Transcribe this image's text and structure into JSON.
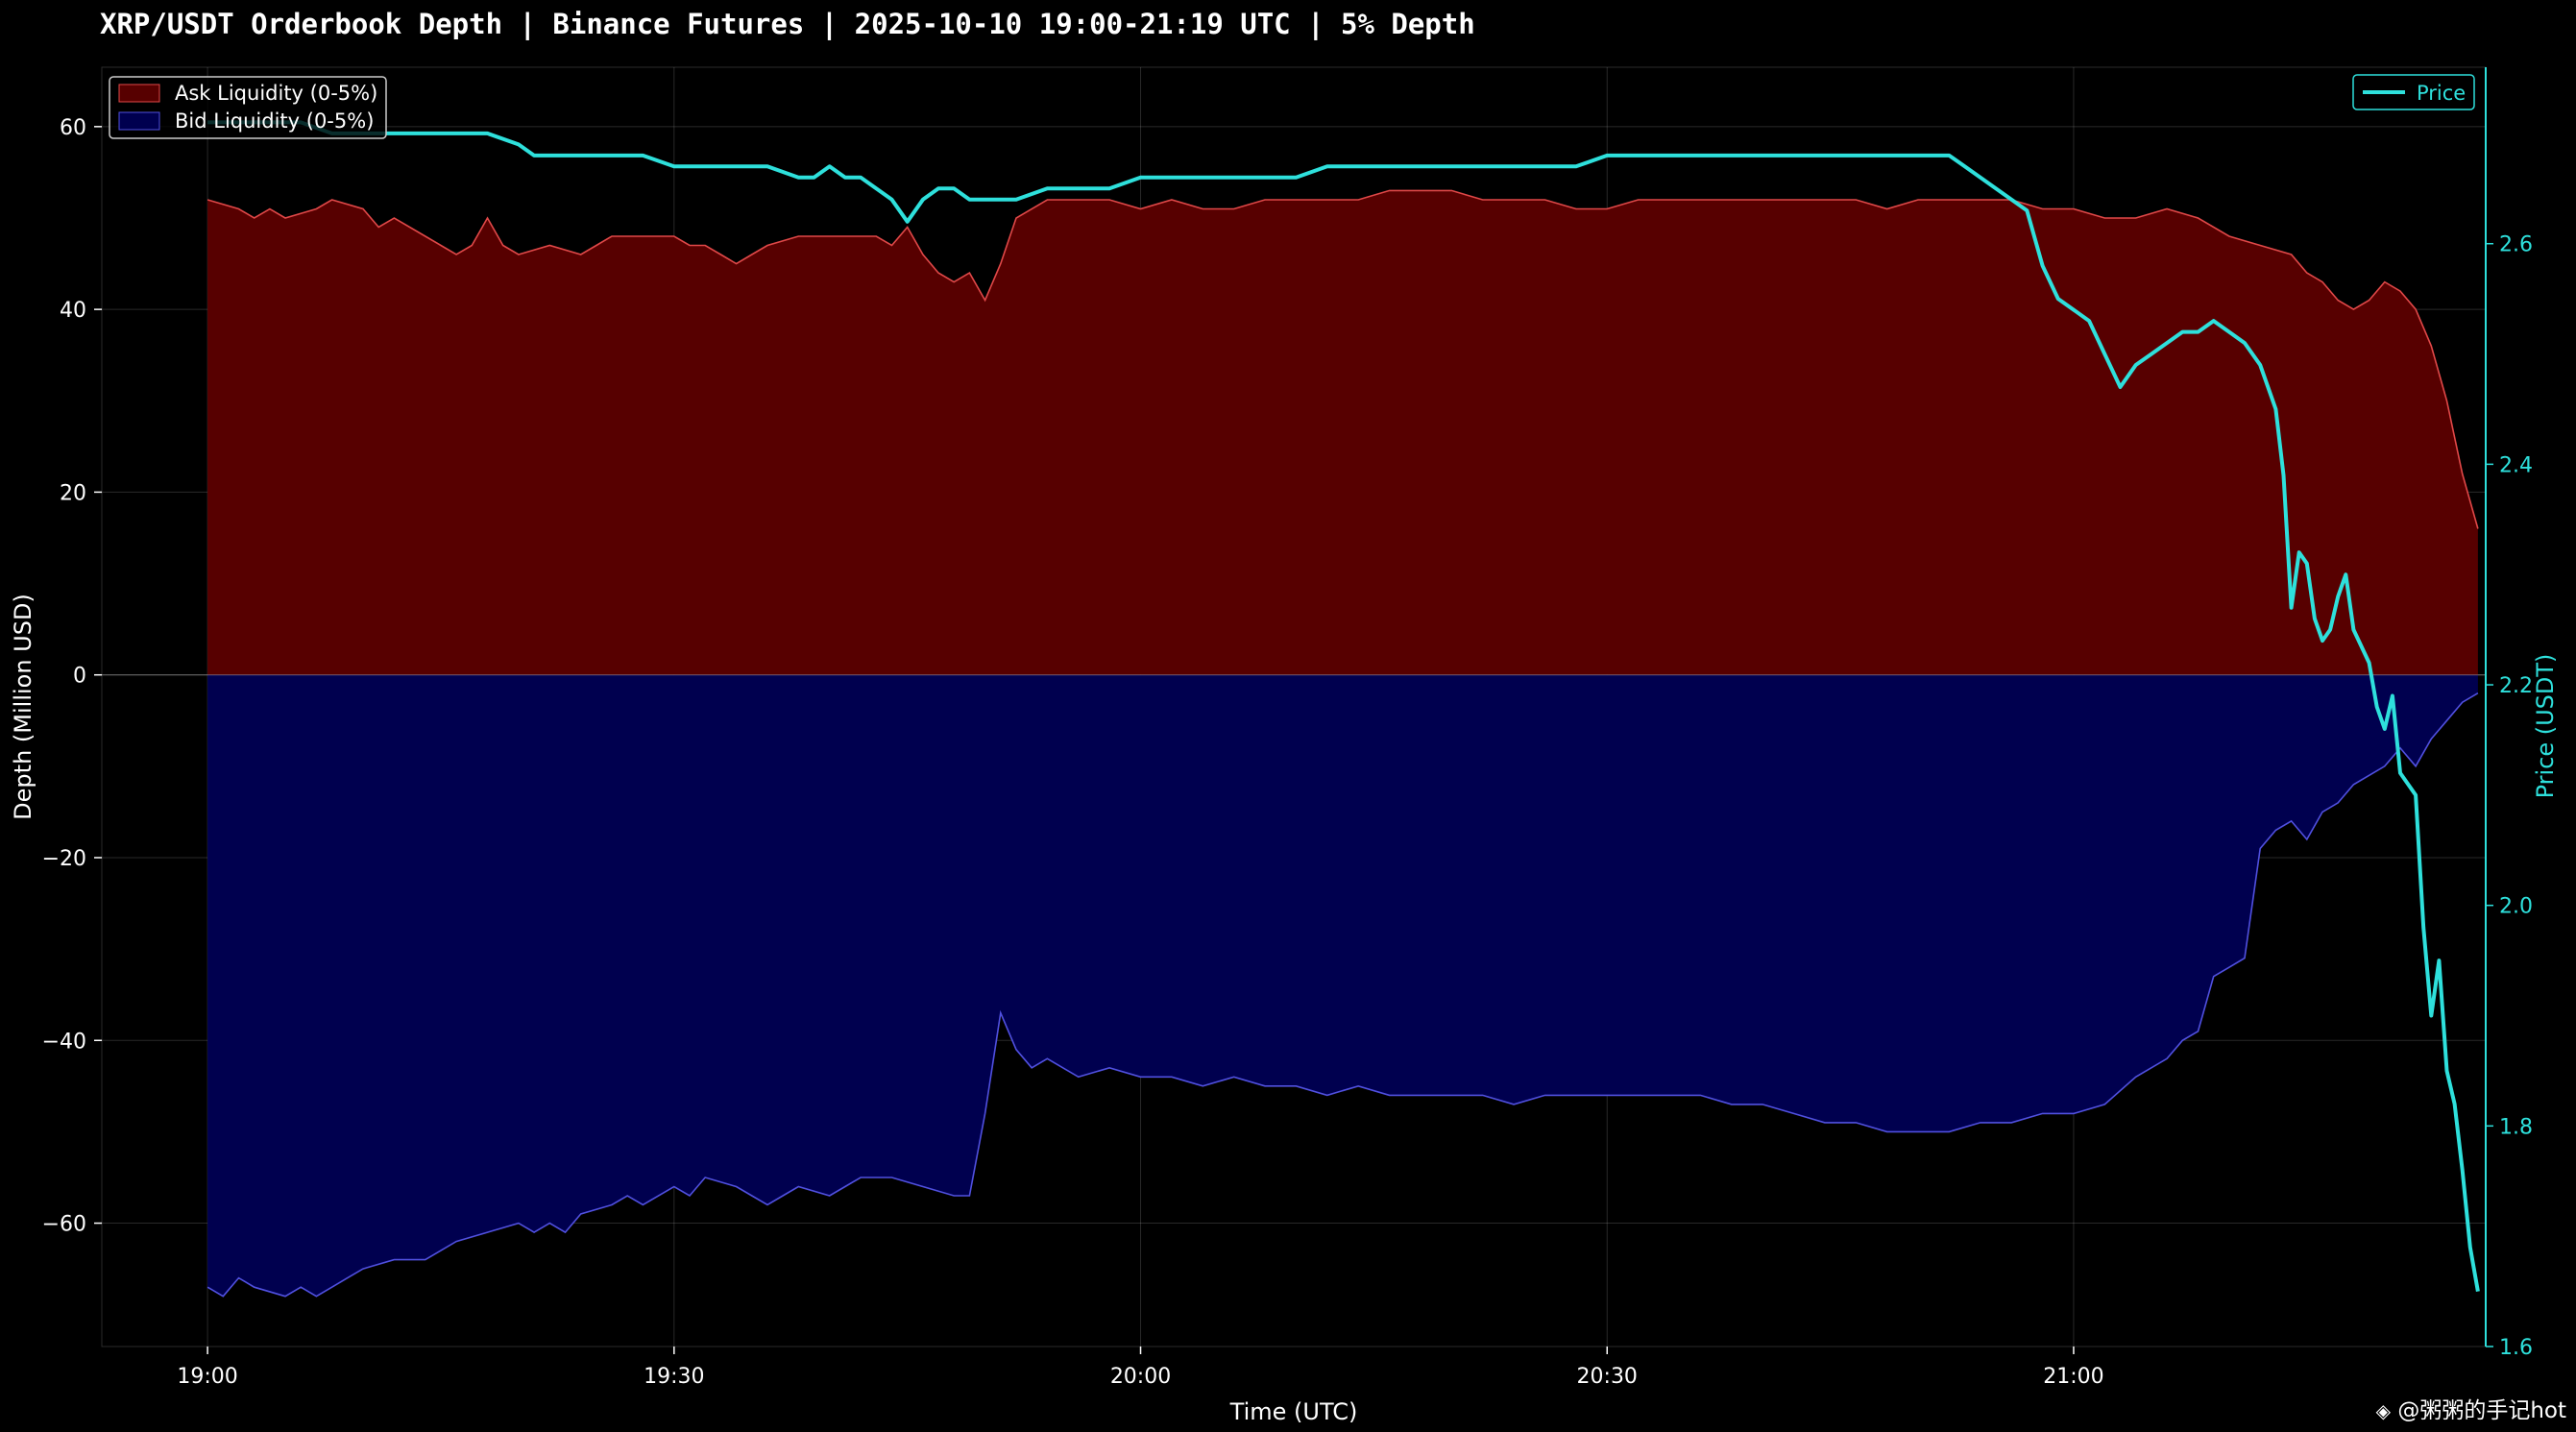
{
  "chart_data": {
    "type": "area",
    "title": "XRP/USDT Orderbook Depth | Binance Futures | 2025-10-10 19:00-21:19 UTC | 5% Depth",
    "xlabel": "Time (UTC)",
    "ylabel": "Depth (Million USD)",
    "y2label": "Price (USDT)",
    "x_ticks": [
      "19:00",
      "19:30",
      "20:00",
      "20:30",
      "21:00"
    ],
    "x_tick_minutes": [
      0,
      30,
      60,
      90,
      120
    ],
    "xlim_minutes": [
      -6.8,
      146.5
    ],
    "ylim": [
      -73.5,
      66.5
    ],
    "y_ticks": [
      -60,
      -40,
      -20,
      0,
      20,
      40,
      60
    ],
    "y2lim": [
      1.6,
      2.76
    ],
    "y2_ticks": [
      1.6,
      1.8,
      2.0,
      2.2,
      2.4,
      2.6
    ],
    "grid": true,
    "legend_left": "top-left",
    "legend_right": "top-right",
    "colors": {
      "ask": "#e04848",
      "ask_fill": "#570000",
      "bid": "#5050e0",
      "bid_fill": "#00004f",
      "price": "#2ee0dc"
    },
    "series": [
      {
        "name": "Ask Liquidity (0-5%)",
        "kind": "area",
        "points": [
          [
            0,
            52
          ],
          [
            2,
            51
          ],
          [
            3,
            50
          ],
          [
            4,
            51
          ],
          [
            5,
            50
          ],
          [
            7,
            51
          ],
          [
            8,
            52
          ],
          [
            10,
            51
          ],
          [
            11,
            49
          ],
          [
            12,
            50
          ],
          [
            14,
            48
          ],
          [
            15,
            47
          ],
          [
            16,
            46
          ],
          [
            17,
            47
          ],
          [
            18,
            50
          ],
          [
            19,
            47
          ],
          [
            20,
            46
          ],
          [
            22,
            47
          ],
          [
            24,
            46
          ],
          [
            25,
            47
          ],
          [
            26,
            48
          ],
          [
            28,
            48
          ],
          [
            30,
            48
          ],
          [
            31,
            47
          ],
          [
            32,
            47
          ],
          [
            33,
            46
          ],
          [
            34,
            45
          ],
          [
            35,
            46
          ],
          [
            36,
            47
          ],
          [
            38,
            48
          ],
          [
            40,
            48
          ],
          [
            42,
            48
          ],
          [
            43,
            48
          ],
          [
            44,
            47
          ],
          [
            45,
            49
          ],
          [
            46,
            46
          ],
          [
            47,
            44
          ],
          [
            48,
            43
          ],
          [
            49,
            44
          ],
          [
            50,
            41
          ],
          [
            51,
            45
          ],
          [
            52,
            50
          ],
          [
            54,
            52
          ],
          [
            56,
            52
          ],
          [
            58,
            52
          ],
          [
            60,
            51
          ],
          [
            62,
            52
          ],
          [
            64,
            51
          ],
          [
            66,
            51
          ],
          [
            68,
            52
          ],
          [
            70,
            52
          ],
          [
            72,
            52
          ],
          [
            74,
            52
          ],
          [
            76,
            53
          ],
          [
            78,
            53
          ],
          [
            80,
            53
          ],
          [
            82,
            52
          ],
          [
            84,
            52
          ],
          [
            86,
            52
          ],
          [
            88,
            51
          ],
          [
            90,
            51
          ],
          [
            92,
            52
          ],
          [
            94,
            52
          ],
          [
            96,
            52
          ],
          [
            98,
            52
          ],
          [
            100,
            52
          ],
          [
            102,
            52
          ],
          [
            104,
            52
          ],
          [
            106,
            52
          ],
          [
            108,
            51
          ],
          [
            110,
            52
          ],
          [
            112,
            52
          ],
          [
            114,
            52
          ],
          [
            116,
            52
          ],
          [
            118,
            51
          ],
          [
            120,
            51
          ],
          [
            122,
            50
          ],
          [
            124,
            50
          ],
          [
            126,
            51
          ],
          [
            128,
            50
          ],
          [
            130,
            48
          ],
          [
            132,
            47
          ],
          [
            134,
            46
          ],
          [
            135,
            44
          ],
          [
            136,
            43
          ],
          [
            137,
            41
          ],
          [
            138,
            40
          ],
          [
            139,
            41
          ],
          [
            140,
            43
          ],
          [
            141,
            42
          ],
          [
            142,
            40
          ],
          [
            143,
            36
          ],
          [
            144,
            30
          ],
          [
            145,
            22
          ],
          [
            146,
            16
          ]
        ]
      },
      {
        "name": "Bid Liquidity (0-5%)",
        "kind": "area",
        "points": [
          [
            0,
            -67
          ],
          [
            1,
            -68
          ],
          [
            2,
            -66
          ],
          [
            3,
            -67
          ],
          [
            5,
            -68
          ],
          [
            6,
            -67
          ],
          [
            7,
            -68
          ],
          [
            8,
            -67
          ],
          [
            9,
            -66
          ],
          [
            10,
            -65
          ],
          [
            12,
            -64
          ],
          [
            14,
            -64
          ],
          [
            15,
            -63
          ],
          [
            16,
            -62
          ],
          [
            18,
            -61
          ],
          [
            20,
            -60
          ],
          [
            21,
            -61
          ],
          [
            22,
            -60
          ],
          [
            23,
            -61
          ],
          [
            24,
            -59
          ],
          [
            26,
            -58
          ],
          [
            27,
            -57
          ],
          [
            28,
            -58
          ],
          [
            30,
            -56
          ],
          [
            31,
            -57
          ],
          [
            32,
            -55
          ],
          [
            34,
            -56
          ],
          [
            35,
            -57
          ],
          [
            36,
            -58
          ],
          [
            37,
            -57
          ],
          [
            38,
            -56
          ],
          [
            40,
            -57
          ],
          [
            41,
            -56
          ],
          [
            42,
            -55
          ],
          [
            44,
            -55
          ],
          [
            46,
            -56
          ],
          [
            48,
            -57
          ],
          [
            49,
            -57
          ],
          [
            50,
            -48
          ],
          [
            51,
            -37
          ],
          [
            52,
            -41
          ],
          [
            53,
            -43
          ],
          [
            54,
            -42
          ],
          [
            56,
            -44
          ],
          [
            58,
            -43
          ],
          [
            60,
            -44
          ],
          [
            62,
            -44
          ],
          [
            64,
            -45
          ],
          [
            66,
            -44
          ],
          [
            68,
            -45
          ],
          [
            70,
            -45
          ],
          [
            72,
            -46
          ],
          [
            74,
            -45
          ],
          [
            76,
            -46
          ],
          [
            78,
            -46
          ],
          [
            80,
            -46
          ],
          [
            82,
            -46
          ],
          [
            84,
            -47
          ],
          [
            86,
            -46
          ],
          [
            88,
            -46
          ],
          [
            90,
            -46
          ],
          [
            92,
            -46
          ],
          [
            94,
            -46
          ],
          [
            96,
            -46
          ],
          [
            98,
            -47
          ],
          [
            100,
            -47
          ],
          [
            102,
            -48
          ],
          [
            104,
            -49
          ],
          [
            106,
            -49
          ],
          [
            108,
            -50
          ],
          [
            110,
            -50
          ],
          [
            112,
            -50
          ],
          [
            114,
            -49
          ],
          [
            116,
            -49
          ],
          [
            118,
            -48
          ],
          [
            120,
            -48
          ],
          [
            122,
            -47
          ],
          [
            124,
            -44
          ],
          [
            126,
            -42
          ],
          [
            127,
            -40
          ],
          [
            128,
            -39
          ],
          [
            129,
            -33
          ],
          [
            130,
            -32
          ],
          [
            131,
            -31
          ],
          [
            132,
            -19
          ],
          [
            133,
            -17
          ],
          [
            134,
            -16
          ],
          [
            135,
            -18
          ],
          [
            136,
            -15
          ],
          [
            137,
            -14
          ],
          [
            138,
            -12
          ],
          [
            140,
            -10
          ],
          [
            141,
            -8
          ],
          [
            142,
            -10
          ],
          [
            143,
            -7
          ],
          [
            144,
            -5
          ],
          [
            145,
            -3
          ],
          [
            146,
            -2
          ]
        ]
      },
      {
        "name": "Price",
        "kind": "line",
        "axis": "y2",
        "points": [
          [
            0,
            2.71
          ],
          [
            2,
            2.71
          ],
          [
            4,
            2.71
          ],
          [
            6,
            2.71
          ],
          [
            8,
            2.7
          ],
          [
            10,
            2.7
          ],
          [
            12,
            2.7
          ],
          [
            14,
            2.7
          ],
          [
            16,
            2.7
          ],
          [
            18,
            2.7
          ],
          [
            20,
            2.69
          ],
          [
            21,
            2.68
          ],
          [
            22,
            2.68
          ],
          [
            24,
            2.68
          ],
          [
            26,
            2.68
          ],
          [
            28,
            2.68
          ],
          [
            30,
            2.67
          ],
          [
            32,
            2.67
          ],
          [
            34,
            2.67
          ],
          [
            36,
            2.67
          ],
          [
            38,
            2.66
          ],
          [
            39,
            2.66
          ],
          [
            40,
            2.67
          ],
          [
            41,
            2.66
          ],
          [
            42,
            2.66
          ],
          [
            43,
            2.65
          ],
          [
            44,
            2.64
          ],
          [
            45,
            2.62
          ],
          [
            46,
            2.64
          ],
          [
            47,
            2.65
          ],
          [
            48,
            2.65
          ],
          [
            49,
            2.64
          ],
          [
            50,
            2.64
          ],
          [
            52,
            2.64
          ],
          [
            54,
            2.65
          ],
          [
            56,
            2.65
          ],
          [
            58,
            2.65
          ],
          [
            60,
            2.66
          ],
          [
            62,
            2.66
          ],
          [
            64,
            2.66
          ],
          [
            66,
            2.66
          ],
          [
            68,
            2.66
          ],
          [
            70,
            2.66
          ],
          [
            72,
            2.67
          ],
          [
            74,
            2.67
          ],
          [
            76,
            2.67
          ],
          [
            78,
            2.67
          ],
          [
            80,
            2.67
          ],
          [
            82,
            2.67
          ],
          [
            84,
            2.67
          ],
          [
            86,
            2.67
          ],
          [
            88,
            2.67
          ],
          [
            90,
            2.68
          ],
          [
            92,
            2.68
          ],
          [
            94,
            2.68
          ],
          [
            96,
            2.68
          ],
          [
            98,
            2.68
          ],
          [
            100,
            2.68
          ],
          [
            102,
            2.68
          ],
          [
            104,
            2.68
          ],
          [
            106,
            2.68
          ],
          [
            108,
            2.68
          ],
          [
            110,
            2.68
          ],
          [
            112,
            2.68
          ],
          [
            113,
            2.67
          ],
          [
            114,
            2.66
          ],
          [
            115,
            2.65
          ],
          [
            116,
            2.64
          ],
          [
            117,
            2.63
          ],
          [
            118,
            2.58
          ],
          [
            119,
            2.55
          ],
          [
            120,
            2.54
          ],
          [
            121,
            2.53
          ],
          [
            122,
            2.5
          ],
          [
            123,
            2.47
          ],
          [
            124,
            2.49
          ],
          [
            125,
            2.5
          ],
          [
            126,
            2.51
          ],
          [
            127,
            2.52
          ],
          [
            128,
            2.52
          ],
          [
            129,
            2.53
          ],
          [
            130,
            2.52
          ],
          [
            131,
            2.51
          ],
          [
            132,
            2.49
          ],
          [
            133,
            2.45
          ],
          [
            133.5,
            2.39
          ],
          [
            134,
            2.27
          ],
          [
            134.5,
            2.32
          ],
          [
            135,
            2.31
          ],
          [
            135.5,
            2.26
          ],
          [
            136,
            2.24
          ],
          [
            136.5,
            2.25
          ],
          [
            137,
            2.28
          ],
          [
            137.5,
            2.3
          ],
          [
            138,
            2.25
          ],
          [
            139,
            2.22
          ],
          [
            139.5,
            2.18
          ],
          [
            140,
            2.16
          ],
          [
            140.5,
            2.19
          ],
          [
            141,
            2.12
          ],
          [
            142,
            2.1
          ],
          [
            142.5,
            1.98
          ],
          [
            143,
            1.9
          ],
          [
            143.5,
            1.95
          ],
          [
            144,
            1.85
          ],
          [
            144.5,
            1.82
          ],
          [
            145,
            1.76
          ],
          [
            145.5,
            1.69
          ],
          [
            146,
            1.65
          ]
        ]
      }
    ]
  },
  "watermark": "@粥粥的手记hot"
}
